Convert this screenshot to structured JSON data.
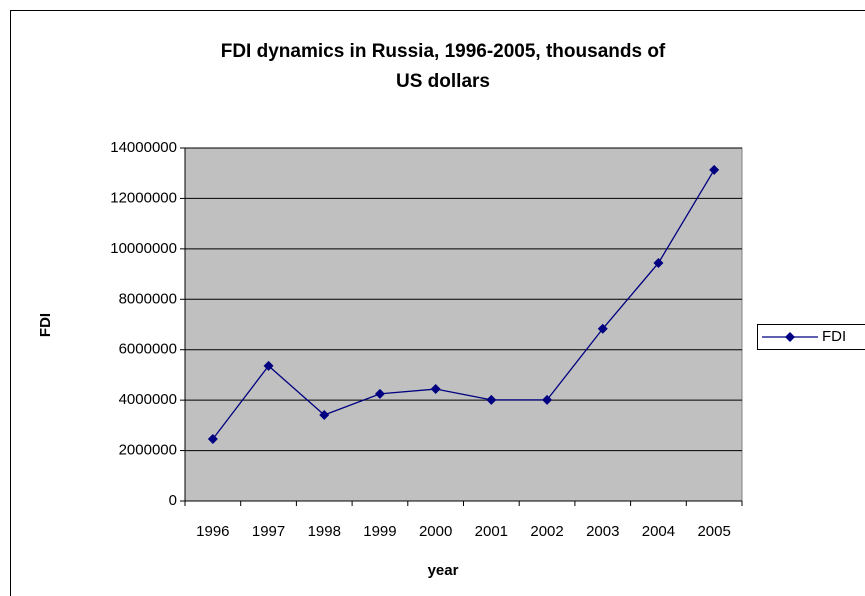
{
  "chart_data": {
    "type": "line",
    "title": [
      "FDI dynamics in Russia, 1996-2005, thousands of",
      "US dollars"
    ],
    "x_label": "year",
    "y_label": "FDI",
    "categories": [
      "1996",
      "1997",
      "1998",
      "1999",
      "2000",
      "2001",
      "2002",
      "2003",
      "2004",
      "2005"
    ],
    "series": [
      {
        "name": "FDI",
        "color": "#000080",
        "values": [
          2460000,
          5360000,
          3410000,
          4250000,
          4440000,
          4010000,
          4010000,
          6830000,
          9440000,
          13130000
        ]
      }
    ],
    "ylim": [
      0,
      14000000
    ],
    "yticks": [
      0,
      2000000,
      4000000,
      6000000,
      8000000,
      10000000,
      12000000,
      14000000
    ],
    "grid": true,
    "legend": "right",
    "plot_background": "#c0c0c0"
  }
}
